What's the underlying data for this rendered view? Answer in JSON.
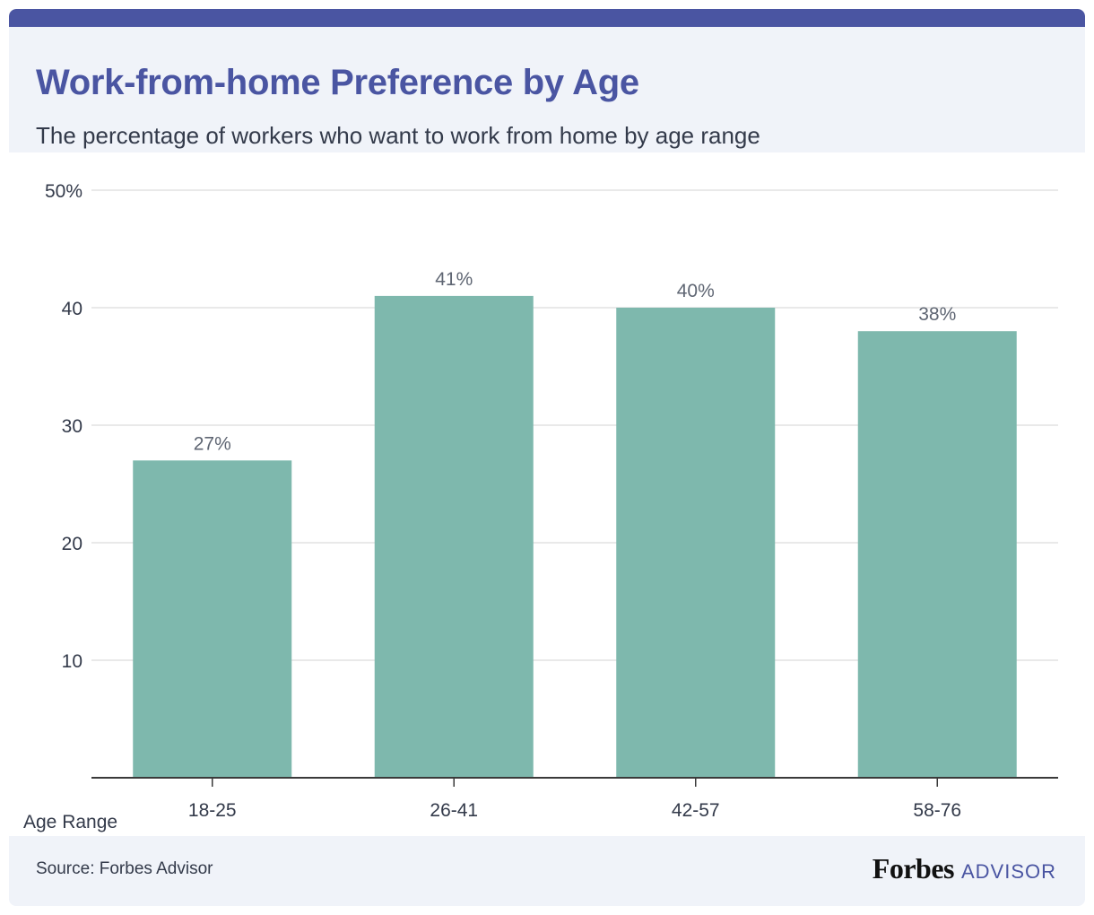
{
  "header": {
    "title": "Work-from-home Preference by Age",
    "subtitle": "The percentage of workers who want to work from home by age range"
  },
  "footer": {
    "source": "Source: Forbes Advisor",
    "logo_brand": "Forbes",
    "logo_product": "ADVISOR"
  },
  "colors": {
    "brand": "#4a55a2",
    "bar": "#7eb8ad",
    "header_bg": "#f0f3f9",
    "gridline": "#e2e2e2",
    "axis": "#3a3a3a"
  },
  "chart_data": {
    "type": "bar",
    "categories": [
      "18-25",
      "26-41",
      "42-57",
      "58-76"
    ],
    "values": [
      27,
      41,
      40,
      38
    ],
    "data_labels": [
      "27%",
      "41%",
      "40%",
      "38%"
    ],
    "ylim": [
      0,
      50
    ],
    "yticks": [
      10,
      20,
      30,
      40,
      50
    ],
    "ytick_labels": [
      "10",
      "20",
      "30",
      "40",
      "50%"
    ],
    "xlabel": "Age Range",
    "ylabel": "",
    "grid": true,
    "legend": "none"
  }
}
